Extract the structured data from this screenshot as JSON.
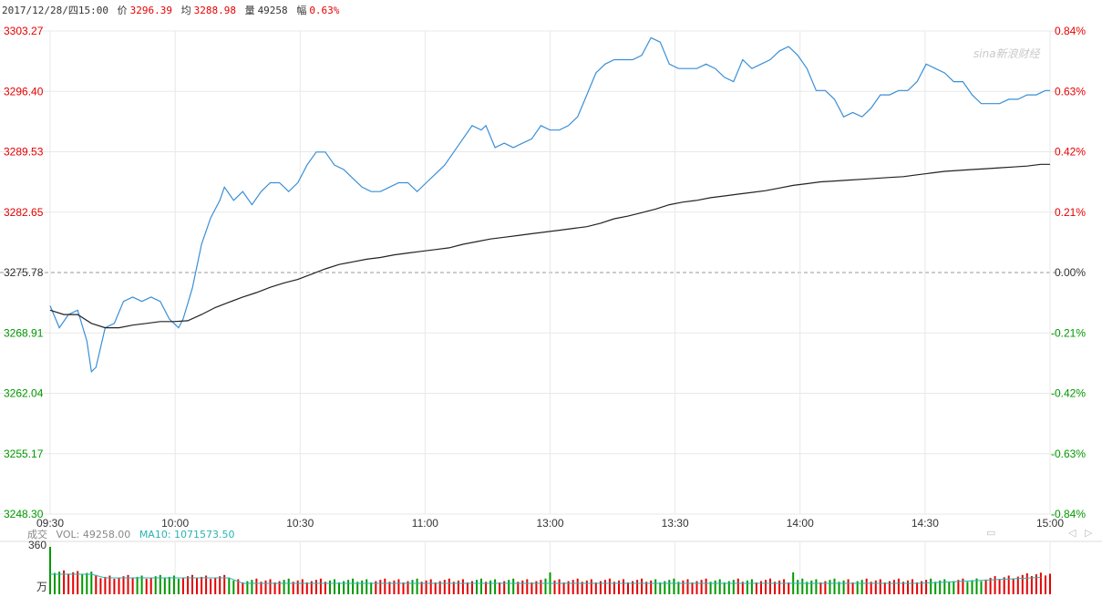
{
  "header": {
    "datetime": "2017/12/28/四15:00",
    "price_label": "价",
    "price_value": "3296.39",
    "avg_label": "均",
    "avg_value": "3288.98",
    "vol_label": "量",
    "vol_value": "49258",
    "chg_label": "幅",
    "chg_value": "0.63%"
  },
  "watermark": "sina新浪财经",
  "volume_panel": {
    "label": "成交",
    "vol_text": "VOL: 49258.00",
    "ma_text": "MA10: 1071573.50",
    "max_tick": "360",
    "unit": "万"
  },
  "colors": {
    "up": "#e60000",
    "down": "#009900",
    "price_line": "#3a8fd6",
    "avg_line": "#222222",
    "ma_line": "#2bb3b3",
    "grid": "#e8e8e8"
  },
  "chart_data": {
    "type": "line",
    "prev_close": 3275.78,
    "ylim": [
      3248.3,
      3303.27
    ],
    "y_ticks_left": [
      "3303.27",
      "3296.40",
      "3289.53",
      "3282.65",
      "3275.78",
      "3268.91",
      "3262.04",
      "3255.17",
      "3248.30"
    ],
    "y_ticks_right": [
      "0.84%",
      "0.63%",
      "0.42%",
      "0.21%",
      "0.00%",
      "-0.21%",
      "-0.42%",
      "-0.63%",
      "-0.84%"
    ],
    "x_ticks": [
      "09:30",
      "10:00",
      "10:30",
      "11:00",
      "13:00",
      "13:30",
      "14:00",
      "14:30",
      "15:00"
    ],
    "series": [
      {
        "key": "price",
        "points": [
          [
            0,
            3272.0
          ],
          [
            2,
            3269.5
          ],
          [
            4,
            3271.0
          ],
          [
            6,
            3271.5
          ],
          [
            8,
            3268.0
          ],
          [
            9,
            3264.5
          ],
          [
            10,
            3265.0
          ],
          [
            12,
            3269.5
          ],
          [
            14,
            3270.0
          ],
          [
            16,
            3272.5
          ],
          [
            18,
            3273.0
          ],
          [
            20,
            3272.5
          ],
          [
            22,
            3273.0
          ],
          [
            24,
            3272.5
          ],
          [
            26,
            3270.5
          ],
          [
            28,
            3269.5
          ],
          [
            29,
            3270.5
          ],
          [
            31,
            3274.0
          ],
          [
            33,
            3279.0
          ],
          [
            35,
            3282.0
          ],
          [
            37,
            3284.0
          ],
          [
            38,
            3285.5
          ],
          [
            40,
            3284.0
          ],
          [
            42,
            3285.0
          ],
          [
            44,
            3283.5
          ],
          [
            46,
            3285.0
          ],
          [
            48,
            3286.0
          ],
          [
            50,
            3286.0
          ],
          [
            52,
            3285.0
          ],
          [
            54,
            3286.0
          ],
          [
            56,
            3288.0
          ],
          [
            58,
            3289.5
          ],
          [
            60,
            3289.5
          ],
          [
            62,
            3288.0
          ],
          [
            64,
            3287.5
          ],
          [
            66,
            3286.5
          ],
          [
            68,
            3285.5
          ],
          [
            70,
            3285.0
          ],
          [
            72,
            3285.0
          ],
          [
            74,
            3285.5
          ],
          [
            76,
            3286.0
          ],
          [
            78,
            3286.0
          ],
          [
            80,
            3285.0
          ],
          [
            82,
            3286.0
          ],
          [
            84,
            3287.0
          ],
          [
            86,
            3288.0
          ],
          [
            88,
            3289.5
          ],
          [
            90,
            3291.0
          ],
          [
            92,
            3292.5
          ],
          [
            94,
            3292.0
          ],
          [
            95,
            3292.5
          ],
          [
            97,
            3290.0
          ],
          [
            99,
            3290.5
          ],
          [
            101,
            3290.0
          ],
          [
            103,
            3290.5
          ],
          [
            105,
            3291.0
          ],
          [
            107,
            3292.5
          ],
          [
            109,
            3292.0
          ],
          [
            111,
            3292.0
          ],
          [
            113,
            3292.5
          ],
          [
            115,
            3293.5
          ],
          [
            117,
            3296.0
          ],
          [
            119,
            3298.5
          ],
          [
            121,
            3299.5
          ],
          [
            123,
            3300.0
          ],
          [
            125,
            3300.0
          ],
          [
            127,
            3300.0
          ],
          [
            129,
            3300.5
          ],
          [
            131,
            3302.5
          ],
          [
            133,
            3302.0
          ],
          [
            135,
            3299.5
          ],
          [
            137,
            3299.0
          ],
          [
            139,
            3299.0
          ],
          [
            141,
            3299.0
          ],
          [
            143,
            3299.5
          ],
          [
            145,
            3299.0
          ],
          [
            147,
            3298.0
          ],
          [
            149,
            3297.5
          ],
          [
            151,
            3300.0
          ],
          [
            153,
            3299.0
          ],
          [
            155,
            3299.5
          ],
          [
            157,
            3300.0
          ],
          [
            159,
            3301.0
          ],
          [
            161,
            3301.5
          ],
          [
            163,
            3300.5
          ],
          [
            165,
            3299.0
          ],
          [
            167,
            3296.5
          ],
          [
            169,
            3296.5
          ],
          [
            171,
            3295.5
          ],
          [
            173,
            3293.5
          ],
          [
            175,
            3294.0
          ],
          [
            177,
            3293.5
          ],
          [
            179,
            3294.5
          ],
          [
            181,
            3296.0
          ],
          [
            183,
            3296.0
          ],
          [
            185,
            3296.5
          ],
          [
            187,
            3296.5
          ],
          [
            189,
            3297.5
          ],
          [
            191,
            3299.5
          ],
          [
            193,
            3299.0
          ],
          [
            195,
            3298.5
          ],
          [
            197,
            3297.5
          ],
          [
            199,
            3297.5
          ],
          [
            201,
            3296.0
          ],
          [
            203,
            3295.0
          ],
          [
            205,
            3295.0
          ],
          [
            207,
            3295.0
          ],
          [
            209,
            3295.5
          ],
          [
            211,
            3295.5
          ],
          [
            213,
            3296.0
          ],
          [
            215,
            3296.0
          ],
          [
            217,
            3296.5
          ],
          [
            218,
            3296.5
          ]
        ]
      },
      {
        "key": "avg",
        "points": [
          [
            0,
            3271.5
          ],
          [
            3,
            3271.0
          ],
          [
            6,
            3271.0
          ],
          [
            9,
            3270.0
          ],
          [
            12,
            3269.5
          ],
          [
            15,
            3269.5
          ],
          [
            18,
            3269.8
          ],
          [
            21,
            3270.0
          ],
          [
            24,
            3270.2
          ],
          [
            27,
            3270.2
          ],
          [
            30,
            3270.3
          ],
          [
            33,
            3271.0
          ],
          [
            36,
            3271.8
          ],
          [
            39,
            3272.4
          ],
          [
            42,
            3273.0
          ],
          [
            45,
            3273.5
          ],
          [
            48,
            3274.1
          ],
          [
            51,
            3274.6
          ],
          [
            54,
            3275.0
          ],
          [
            57,
            3275.6
          ],
          [
            60,
            3276.2
          ],
          [
            63,
            3276.7
          ],
          [
            66,
            3277.0
          ],
          [
            69,
            3277.3
          ],
          [
            72,
            3277.5
          ],
          [
            75,
            3277.8
          ],
          [
            78,
            3278.0
          ],
          [
            81,
            3278.2
          ],
          [
            84,
            3278.4
          ],
          [
            87,
            3278.6
          ],
          [
            90,
            3279.0
          ],
          [
            93,
            3279.3
          ],
          [
            96,
            3279.6
          ],
          [
            99,
            3279.8
          ],
          [
            102,
            3280.0
          ],
          [
            105,
            3280.2
          ],
          [
            108,
            3280.4
          ],
          [
            111,
            3280.6
          ],
          [
            114,
            3280.8
          ],
          [
            117,
            3281.0
          ],
          [
            120,
            3281.4
          ],
          [
            123,
            3281.9
          ],
          [
            126,
            3282.2
          ],
          [
            129,
            3282.6
          ],
          [
            132,
            3283.0
          ],
          [
            135,
            3283.5
          ],
          [
            138,
            3283.8
          ],
          [
            141,
            3284.0
          ],
          [
            144,
            3284.3
          ],
          [
            147,
            3284.5
          ],
          [
            150,
            3284.7
          ],
          [
            153,
            3284.9
          ],
          [
            156,
            3285.1
          ],
          [
            159,
            3285.4
          ],
          [
            162,
            3285.7
          ],
          [
            165,
            3285.9
          ],
          [
            168,
            3286.1
          ],
          [
            171,
            3286.2
          ],
          [
            174,
            3286.3
          ],
          [
            177,
            3286.4
          ],
          [
            180,
            3286.5
          ],
          [
            183,
            3286.6
          ],
          [
            186,
            3286.7
          ],
          [
            189,
            3286.9
          ],
          [
            192,
            3287.1
          ],
          [
            195,
            3287.3
          ],
          [
            198,
            3287.4
          ],
          [
            201,
            3287.5
          ],
          [
            204,
            3287.6
          ],
          [
            207,
            3287.7
          ],
          [
            210,
            3287.8
          ],
          [
            213,
            3287.9
          ],
          [
            216,
            3288.1
          ],
          [
            218,
            3288.1
          ]
        ]
      }
    ]
  }
}
